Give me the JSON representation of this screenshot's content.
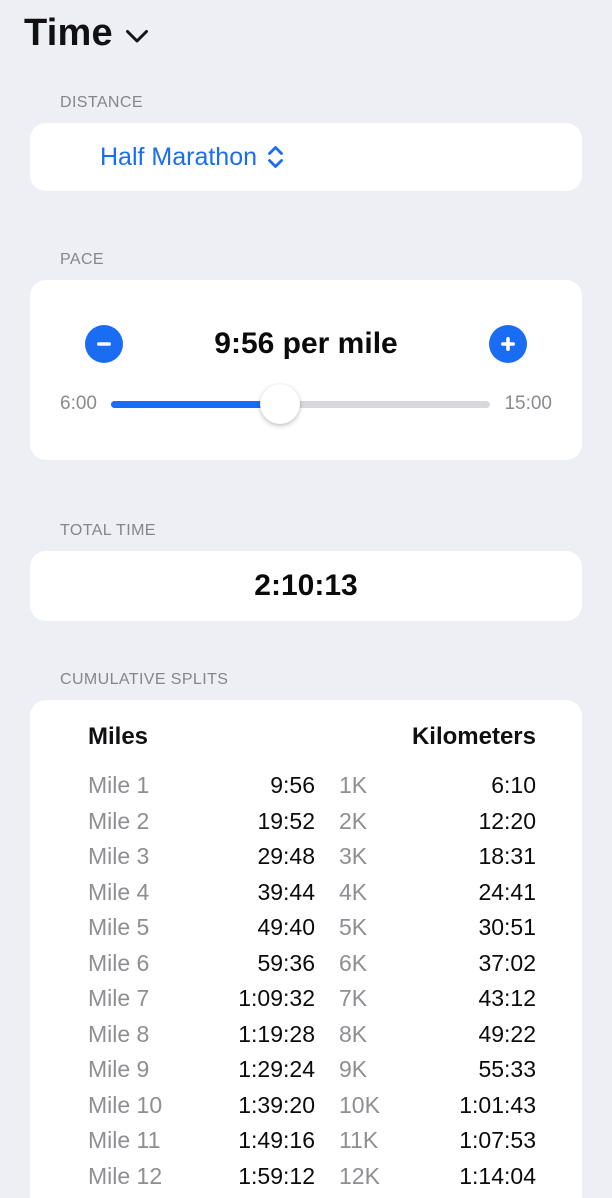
{
  "header": {
    "title": "Time"
  },
  "distance": {
    "label": "DISTANCE",
    "value": "Half Marathon"
  },
  "pace": {
    "label": "PACE",
    "value": "9:56 per mile",
    "slider": {
      "min_label": "6:00",
      "max_label": "15:00",
      "percent": 44.5
    }
  },
  "total_time": {
    "label": "TOTAL TIME",
    "value": "2:10:13"
  },
  "splits": {
    "label": "CUMULATIVE SPLITS",
    "miles_header": "Miles",
    "km_header": "Kilometers",
    "rows": [
      {
        "mile": "Mile 1",
        "mile_time": "9:56",
        "km": "1K",
        "km_time": "6:10"
      },
      {
        "mile": "Mile 2",
        "mile_time": "19:52",
        "km": "2K",
        "km_time": "12:20"
      },
      {
        "mile": "Mile 3",
        "mile_time": "29:48",
        "km": "3K",
        "km_time": "18:31"
      },
      {
        "mile": "Mile 4",
        "mile_time": "39:44",
        "km": "4K",
        "km_time": "24:41"
      },
      {
        "mile": "Mile 5",
        "mile_time": "49:40",
        "km": "5K",
        "km_time": "30:51"
      },
      {
        "mile": "Mile 6",
        "mile_time": "59:36",
        "km": "6K",
        "km_time": "37:02"
      },
      {
        "mile": "Mile 7",
        "mile_time": "1:09:32",
        "km": "7K",
        "km_time": "43:12"
      },
      {
        "mile": "Mile 8",
        "mile_time": "1:19:28",
        "km": "8K",
        "km_time": "49:22"
      },
      {
        "mile": "Mile 9",
        "mile_time": "1:29:24",
        "km": "9K",
        "km_time": "55:33"
      },
      {
        "mile": "Mile 10",
        "mile_time": "1:39:20",
        "km": "10K",
        "km_time": "1:01:43"
      },
      {
        "mile": "Mile 11",
        "mile_time": "1:49:16",
        "km": "11K",
        "km_time": "1:07:53"
      },
      {
        "mile": "Mile 12",
        "mile_time": "1:59:12",
        "km": "12K",
        "km_time": "1:14:04"
      }
    ]
  },
  "icons": {
    "title_chevron": "chevron-down",
    "picker_chevron": "chevron-up-down",
    "decrease": "minus",
    "increase": "plus"
  },
  "colors": {
    "accent": "#1a6cf3",
    "background": "#edeff4",
    "card": "#ffffff",
    "section_label": "#85858b",
    "table_label": "#8e8e93",
    "value_text": "#0b0b0c",
    "slider_track": "#d8d8dc"
  }
}
